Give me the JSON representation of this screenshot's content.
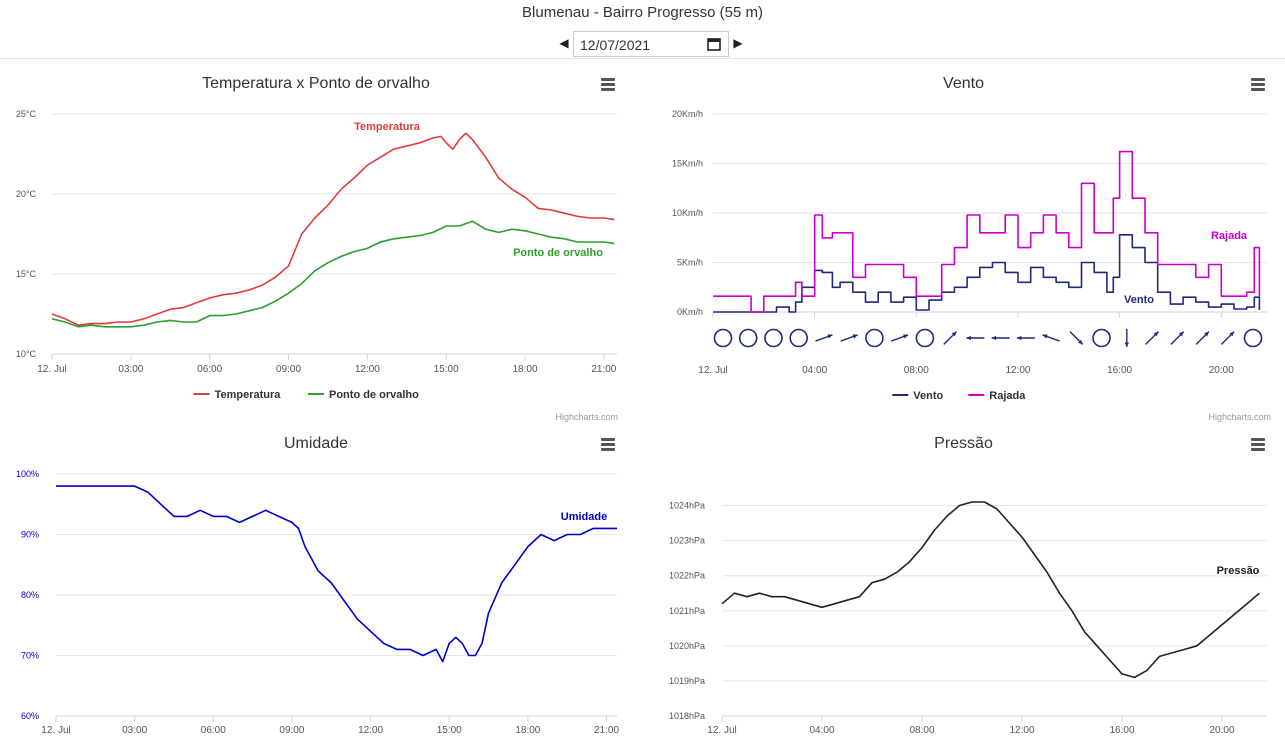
{
  "header": {
    "title": "Blumenau - Bairro Progresso (55 m)",
    "date": "12/07/2021"
  },
  "credit": "Highcharts.com",
  "chart_data": [
    {
      "id": "temp",
      "type": "line",
      "title": "Temperatura x Ponto de orvalho",
      "ylim": [
        10,
        25
      ],
      "yticks": [
        10,
        15,
        20,
        25
      ],
      "yunit": "°C",
      "xlim": [
        0,
        21.5
      ],
      "xticks": [
        0,
        3,
        6,
        9,
        12,
        15,
        18,
        21
      ],
      "xticklabels": [
        "12. Jul",
        "03:00",
        "06:00",
        "09:00",
        "12:00",
        "15:00",
        "18:00",
        "21:00"
      ],
      "grid": true,
      "legend": "bottom-center",
      "series": [
        {
          "name": "Temperatura",
          "color": "#e03c3c",
          "x": [
            0,
            0.5,
            1,
            1.5,
            2,
            2.5,
            3,
            3.5,
            4,
            4.5,
            5,
            5.5,
            6,
            6.5,
            7,
            7.5,
            8,
            8.5,
            9,
            9.25,
            9.5,
            10,
            10.5,
            11,
            11.5,
            12,
            12.5,
            13,
            13.5,
            14,
            14.5,
            14.8,
            15,
            15.25,
            15.5,
            15.75,
            16,
            16.5,
            17,
            17.5,
            18,
            18.5,
            19,
            19.5,
            20,
            20.5,
            21,
            21.4
          ],
          "y": [
            12.5,
            12.2,
            11.8,
            11.9,
            11.9,
            12.0,
            12.0,
            12.2,
            12.5,
            12.8,
            12.9,
            13.2,
            13.5,
            13.7,
            13.8,
            14.0,
            14.3,
            14.8,
            15.5,
            16.5,
            17.5,
            18.5,
            19.3,
            20.3,
            21.0,
            21.8,
            22.3,
            22.8,
            23.0,
            23.2,
            23.5,
            23.6,
            23.2,
            22.8,
            23.4,
            23.8,
            23.4,
            22.3,
            21.0,
            20.3,
            19.8,
            19.1,
            19.0,
            18.8,
            18.6,
            18.5,
            18.5,
            18.4
          ]
        },
        {
          "name": "Ponto de orvalho",
          "color": "#2e9e2e",
          "x": [
            0,
            0.5,
            1,
            1.5,
            2,
            2.5,
            3,
            3.5,
            4,
            4.5,
            5,
            5.5,
            6,
            6.5,
            7,
            7.5,
            8,
            8.5,
            9,
            9.5,
            10,
            10.5,
            11,
            11.5,
            12,
            12.5,
            13,
            13.5,
            14,
            14.5,
            15,
            15.5,
            16,
            16.5,
            17,
            17.5,
            18,
            18.5,
            19,
            19.5,
            20,
            20.5,
            21,
            21.4
          ],
          "y": [
            12.2,
            12.0,
            11.7,
            11.8,
            11.7,
            11.7,
            11.7,
            11.8,
            12.0,
            12.1,
            12.0,
            12.0,
            12.4,
            12.4,
            12.5,
            12.7,
            12.9,
            13.3,
            13.8,
            14.4,
            15.2,
            15.7,
            16.1,
            16.4,
            16.6,
            17.0,
            17.2,
            17.3,
            17.4,
            17.6,
            18.0,
            18.0,
            18.3,
            17.8,
            17.6,
            17.8,
            17.7,
            17.5,
            17.3,
            17.2,
            17.0,
            17.0,
            17.0,
            16.9
          ]
        }
      ]
    },
    {
      "id": "wind",
      "type": "line",
      "title": "Vento",
      "ylim": [
        0,
        20
      ],
      "yticks": [
        0,
        5,
        10,
        15,
        20
      ],
      "yunit": "Km/h",
      "xlim": [
        0,
        21.8
      ],
      "xticks": [
        0,
        4,
        8,
        12,
        16,
        20
      ],
      "xticklabels": [
        "12. Jul",
        "04:00",
        "08:00",
        "12:00",
        "16:00",
        "20:00"
      ],
      "grid": true,
      "legend": "bottom-center",
      "series": [
        {
          "name": "Vento",
          "color": "#1f2a7a",
          "x": [
            0,
            0.5,
            1,
            1.5,
            2,
            2.5,
            3,
            3.25,
            3.5,
            4,
            4.3,
            4.7,
            5,
            5.5,
            6,
            6.5,
            7,
            7.5,
            8,
            8.5,
            9,
            9.5,
            10,
            10.5,
            11,
            11.5,
            12,
            12.5,
            13,
            13.5,
            14,
            14.5,
            15,
            15.5,
            15.75,
            16,
            16.5,
            17,
            17.5,
            18,
            18.5,
            19,
            19.5,
            20,
            20.5,
            21,
            21.3,
            21.5
          ],
          "y": [
            0,
            0,
            0,
            0,
            0,
            0.5,
            0,
            1.0,
            2.5,
            4.2,
            4.0,
            2.5,
            3.0,
            2.0,
            1.0,
            2.0,
            1.0,
            1.5,
            0.2,
            1.2,
            2.0,
            2.5,
            3.5,
            4.5,
            5.0,
            4.0,
            3.0,
            4.5,
            3.5,
            3.0,
            2.5,
            5.0,
            4.0,
            2.0,
            3.5,
            7.8,
            6.5,
            5.0,
            2.0,
            0.8,
            1.5,
            1.0,
            0.5,
            0.8,
            0.3,
            0.5,
            1.5,
            0.2
          ]
        },
        {
          "name": "Rajada",
          "color": "#cc00cc",
          "x": [
            0,
            0.5,
            1,
            1.5,
            2,
            2.5,
            3,
            3.25,
            3.5,
            4,
            4.3,
            4.7,
            5,
            5.5,
            6,
            6.5,
            7,
            7.5,
            8,
            8.5,
            9,
            9.5,
            10,
            10.5,
            11,
            11.5,
            12,
            12.5,
            13,
            13.5,
            14,
            14.5,
            15,
            15.5,
            15.75,
            16,
            16.5,
            17,
            17.5,
            18,
            18.5,
            19,
            19.5,
            20,
            20.5,
            21,
            21.3,
            21.5
          ],
          "y": [
            1.6,
            1.6,
            1.6,
            0,
            1.6,
            1.6,
            1.6,
            3.0,
            1.6,
            9.8,
            7.5,
            8.0,
            8.0,
            3.5,
            4.8,
            4.8,
            4.8,
            3.5,
            1.6,
            1.6,
            4.8,
            6.5,
            9.8,
            8.0,
            8.0,
            9.8,
            6.5,
            8.0,
            9.8,
            8.0,
            6.5,
            13.0,
            8.0,
            8.0,
            11.5,
            16.2,
            11.5,
            8.0,
            4.8,
            4.8,
            4.8,
            3.5,
            4.8,
            1.6,
            1.6,
            2.0,
            6.5,
            1.6
          ]
        }
      ],
      "direction_markers": [
        "calm",
        "calm",
        "calm",
        "calm",
        "ENE",
        "ENE",
        "calm",
        "ENE",
        "calm",
        "NE",
        "W",
        "W",
        "W",
        "WNW",
        "SE",
        "calm",
        "S",
        "NE",
        "NE",
        "NE",
        "NE",
        "calm"
      ]
    },
    {
      "id": "hum",
      "type": "line",
      "title": "Umidade",
      "ylim": [
        60,
        100
      ],
      "yticks": [
        60,
        70,
        80,
        90,
        100
      ],
      "yunit": "%",
      "xlim": [
        0,
        21.4
      ],
      "xticks": [
        0,
        3,
        6,
        9,
        12,
        15,
        18,
        21
      ],
      "xticklabels": [
        "12. Jul",
        "03:00",
        "06:00",
        "09:00",
        "12:00",
        "15:00",
        "18:00",
        "21:00"
      ],
      "grid": true,
      "legend": "none",
      "series": [
        {
          "name": "Umidade",
          "color": "#0000cc",
          "x": [
            0,
            0.5,
            1,
            1.5,
            2,
            2.5,
            3,
            3.5,
            4,
            4.5,
            5,
            5.5,
            6,
            6.5,
            7,
            7.5,
            8,
            8.5,
            9,
            9.25,
            9.5,
            10,
            10.5,
            11,
            11.5,
            12,
            12.5,
            13,
            13.5,
            14,
            14.5,
            14.75,
            15,
            15.25,
            15.5,
            15.75,
            16,
            16.25,
            16.5,
            17,
            17.5,
            18,
            18.5,
            19,
            19.5,
            20,
            20.5,
            21,
            21.4
          ],
          "y": [
            98,
            98,
            98,
            98,
            98,
            98,
            98,
            97,
            95,
            93,
            93,
            94,
            93,
            93,
            92,
            93,
            94,
            93,
            92,
            91,
            88,
            84,
            82,
            79,
            76,
            74,
            72,
            71,
            71,
            70,
            71,
            69,
            72,
            73,
            72,
            70,
            70,
            72,
            77,
            82,
            85,
            88,
            90,
            89,
            90,
            90,
            91,
            91,
            91
          ]
        }
      ]
    },
    {
      "id": "pres",
      "type": "line",
      "title": "Pressão",
      "ylim": [
        1018,
        1024.5
      ],
      "yticks": [
        1018,
        1019,
        1020,
        1021,
        1022,
        1023,
        1024
      ],
      "yunit": "hPa",
      "xlim": [
        0,
        21.8
      ],
      "xticks": [
        0,
        4,
        8,
        12,
        16,
        20
      ],
      "xticklabels": [
        "12. Jul",
        "04:00",
        "08:00",
        "12:00",
        "16:00",
        "20:00"
      ],
      "grid": true,
      "legend": "none",
      "series": [
        {
          "name": "Pressão",
          "color": "#222222",
          "x": [
            0,
            0.5,
            1,
            1.5,
            2,
            2.5,
            3,
            3.5,
            4,
            4.5,
            5,
            5.5,
            6,
            6.5,
            7,
            7.5,
            8,
            8.5,
            9,
            9.5,
            10,
            10.5,
            11,
            11.5,
            12,
            12.5,
            13,
            13.5,
            14,
            14.5,
            15,
            15.5,
            16,
            16.5,
            17,
            17.5,
            18,
            18.5,
            19,
            19.5,
            20,
            20.5,
            21,
            21.5
          ],
          "y": [
            1021.2,
            1021.5,
            1021.4,
            1021.5,
            1021.4,
            1021.4,
            1021.3,
            1021.2,
            1021.1,
            1021.2,
            1021.3,
            1021.4,
            1021.8,
            1021.9,
            1022.1,
            1022.4,
            1022.8,
            1023.3,
            1023.7,
            1024.0,
            1024.1,
            1024.1,
            1023.9,
            1023.5,
            1023.1,
            1022.6,
            1022.1,
            1021.5,
            1021.0,
            1020.4,
            1020.0,
            1019.6,
            1019.2,
            1019.1,
            1019.3,
            1019.7,
            1019.8,
            1019.9,
            1020.0,
            1020.3,
            1020.6,
            1020.9,
            1021.2,
            1021.5
          ]
        }
      ]
    }
  ]
}
